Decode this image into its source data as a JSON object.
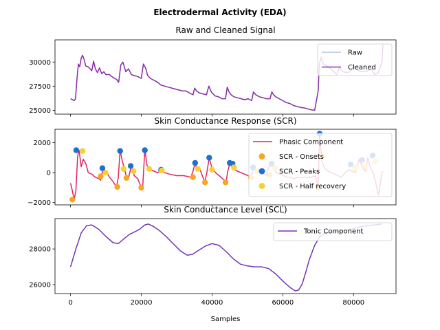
{
  "figure": {
    "suptitle": "Electrodermal Activity (EDA)",
    "xlabel": "Samples",
    "x_ticks": [
      0,
      20000,
      40000,
      60000,
      80000
    ],
    "x_tick_labels": [
      "0",
      "20000",
      "40000",
      "60000",
      "80000"
    ]
  },
  "chart_data": [
    {
      "type": "line",
      "title": "Raw and Cleaned Signal",
      "xlim": [
        -4400,
        92000
      ],
      "ylim": [
        24600,
        32300
      ],
      "y_ticks": [
        25000,
        27500,
        30000
      ],
      "y_tick_labels": [
        "25000",
        "27500",
        "30000"
      ],
      "legend": "top-right",
      "series": [
        {
          "name": "Raw",
          "color": "#b0c4de",
          "x": [
            0,
            600,
            1000,
            1400,
            1800,
            2200,
            2600,
            3000,
            3400,
            3800,
            4300,
            5000,
            6000,
            6500,
            7000,
            7600,
            8200,
            8800,
            9400,
            10000,
            11000,
            12000,
            13000,
            13600,
            14200,
            14800,
            15600,
            16400,
            17200,
            18000,
            19000,
            20000,
            20600,
            21200,
            21800,
            22600,
            23600,
            24600,
            25600,
            26600,
            27600,
            28600,
            29600,
            30600,
            31600,
            32600,
            33600,
            34600,
            35100,
            35600,
            36400,
            37400,
            38400,
            39100,
            39800,
            40800,
            41800,
            42800,
            43800,
            44300,
            44800,
            45400,
            46200,
            47200,
            48200,
            49200,
            50200,
            51200,
            51700,
            52400,
            53400,
            54400,
            55400,
            56400,
            56900,
            57400,
            58000,
            59000,
            60000,
            61000,
            62000,
            63000,
            64000,
            65000,
            66000,
            67000,
            68000,
            69000,
            70000,
            70300,
            70800,
            71500,
            72500,
            73500,
            74500,
            75200,
            76000,
            77000,
            78000,
            79000,
            80000,
            81000,
            82000,
            83000,
            84000,
            85000,
            86000,
            87000,
            88000,
            88300
          ],
          "y": [
            26200,
            26100,
            26000,
            26200,
            28200,
            29800,
            29500,
            30400,
            30700,
            30300,
            29600,
            29500,
            29100,
            30100,
            29300,
            28900,
            29400,
            28800,
            29000,
            28700,
            28700,
            28400,
            28200,
            27900,
            29700,
            30000,
            29000,
            29300,
            28700,
            28600,
            28500,
            28300,
            29800,
            29400,
            28600,
            28300,
            28100,
            27900,
            27600,
            27500,
            27400,
            27300,
            27200,
            27100,
            27000,
            27000,
            26800,
            26600,
            27300,
            27000,
            26800,
            26700,
            26600,
            27500,
            26900,
            26500,
            26400,
            26200,
            26200,
            27400,
            26900,
            26600,
            26400,
            26300,
            26200,
            26100,
            26200,
            26000,
            26900,
            26600,
            26400,
            26300,
            26200,
            26200,
            26900,
            26600,
            26400,
            26200,
            26000,
            25800,
            25700,
            25500,
            25400,
            25300,
            25250,
            25150,
            25050,
            25000,
            27000,
            29700,
            30500,
            29800,
            29600,
            29300,
            29000,
            28700,
            29400,
            29000,
            28900,
            29000,
            29600,
            29200,
            29000,
            29000,
            29100,
            29300,
            28700,
            28900,
            30000,
            31800
          ]
        },
        {
          "name": "Cleaned",
          "color": "#8b2fa8",
          "x": [
            0,
            600,
            1000,
            1400,
            1800,
            2200,
            2600,
            3000,
            3400,
            3800,
            4300,
            5000,
            6000,
            6500,
            7000,
            7600,
            8200,
            8800,
            9400,
            10000,
            11000,
            12000,
            13000,
            13600,
            14200,
            14800,
            15600,
            16400,
            17200,
            18000,
            19000,
            20000,
            20600,
            21200,
            21800,
            22600,
            23600,
            24600,
            25600,
            26600,
            27600,
            28600,
            29600,
            30600,
            31600,
            32600,
            33600,
            34600,
            35100,
            35600,
            36400,
            37400,
            38400,
            39100,
            39800,
            40800,
            41800,
            42800,
            43800,
            44300,
            44800,
            45400,
            46200,
            47200,
            48200,
            49200,
            50200,
            51200,
            51700,
            52400,
            53400,
            54400,
            55400,
            56400,
            56900,
            57400,
            58000,
            59000,
            60000,
            61000,
            62000,
            63000,
            64000,
            65000,
            66000,
            67000,
            68000,
            69000,
            70000,
            70300,
            70800,
            71500,
            72500,
            73500,
            74500,
            75200,
            76000,
            77000,
            78000,
            79000,
            80000,
            81000,
            82000,
            83000,
            84000,
            85000,
            86000,
            87000,
            88000,
            88300
          ],
          "y": [
            26200,
            26100,
            26000,
            26200,
            28200,
            29800,
            29500,
            30400,
            30700,
            30300,
            29600,
            29500,
            29100,
            30100,
            29300,
            28900,
            29400,
            28800,
            29000,
            28700,
            28700,
            28400,
            28200,
            27900,
            29700,
            30000,
            29000,
            29300,
            28700,
            28600,
            28500,
            28300,
            29800,
            29400,
            28600,
            28300,
            28100,
            27900,
            27600,
            27500,
            27400,
            27300,
            27200,
            27100,
            27000,
            27000,
            26800,
            26600,
            27300,
            27000,
            26800,
            26700,
            26600,
            27500,
            26900,
            26500,
            26400,
            26200,
            26200,
            27400,
            26900,
            26600,
            26400,
            26300,
            26200,
            26100,
            26200,
            26000,
            26900,
            26600,
            26400,
            26300,
            26200,
            26200,
            26900,
            26600,
            26400,
            26200,
            26000,
            25800,
            25700,
            25500,
            25400,
            25300,
            25250,
            25150,
            25050,
            25000,
            27000,
            29700,
            30500,
            29800,
            29600,
            29300,
            29000,
            28700,
            29400,
            29000,
            28900,
            29000,
            29600,
            29200,
            29000,
            29000,
            29100,
            29300,
            28700,
            28900,
            30000,
            31800
          ]
        }
      ]
    },
    {
      "type": "line",
      "title": "Skin Conductance Response (SCR)",
      "xlim": [
        -4400,
        92000
      ],
      "ylim": [
        -2150,
        2900
      ],
      "y_ticks": [
        -2000,
        0,
        2000
      ],
      "y_tick_labels": [
        "−2000",
        "0",
        "2000"
      ],
      "legend": "top-right",
      "series": [
        {
          "name": "Phasic Component",
          "color": "#e0245e",
          "x": [
            0,
            500,
            1000,
            1500,
            2000,
            2400,
            3000,
            3600,
            4300,
            5000,
            6000,
            7000,
            8000,
            8500,
            9200,
            10000,
            11000,
            12000,
            13000,
            13500,
            14000,
            14600,
            15200,
            15800,
            16400,
            17200,
            18000,
            19000,
            20000,
            20400,
            21000,
            21600,
            22600,
            23600,
            24600,
            25600,
            26600,
            28000,
            30000,
            32000,
            34000,
            34600,
            35200,
            35800,
            36600,
            37400,
            38000,
            38600,
            39200,
            40000,
            41000,
            42000,
            43000,
            44000,
            44400,
            45000,
            45600,
            46400,
            47200,
            48200,
            49200,
            50200,
            51000,
            51600,
            52400,
            53400,
            54400,
            55400,
            56200,
            56800,
            57400,
            58200,
            59200,
            60200,
            61200,
            62200,
            63200,
            64200,
            65200,
            66200,
            67200,
            68200,
            69200,
            70000,
            70400,
            71000,
            71800,
            72800,
            73800,
            74800,
            75600,
            76600,
            77600,
            78600,
            79600,
            80600,
            81600,
            82600,
            83400,
            84000,
            84800,
            85400,
            86200,
            87000,
            87600,
            88000,
            88300
          ],
          "y": [
            -700,
            -1200,
            -1800,
            -1200,
            1100,
            1500,
            400,
            900,
            600,
            0,
            -100,
            -300,
            -400,
            -500,
            300,
            100,
            -300,
            -600,
            -950,
            -300,
            1500,
            800,
            300,
            -300,
            -350,
            500,
            -200,
            -400,
            -1000,
            -900,
            1550,
            500,
            200,
            100,
            0,
            150,
            0,
            -100,
            -200,
            -200,
            -300,
            100,
            650,
            100,
            200,
            -300,
            -600,
            100,
            1000,
            300,
            0,
            -200,
            -400,
            -600,
            50,
            600,
            500,
            200,
            100,
            0,
            -100,
            -200,
            -300,
            350,
            100,
            0,
            -100,
            -150,
            500,
            600,
            200,
            0,
            -100,
            -200,
            -300,
            -300,
            -400,
            -300,
            -300,
            -300,
            -300,
            -300,
            -200,
            -1000,
            2600,
            800,
            300,
            100,
            0,
            -100,
            -200,
            -300,
            0,
            200,
            100,
            0,
            900,
            300,
            100,
            1000,
            300,
            100,
            -600,
            -1500,
            -700,
            0,
            100
          ]
        },
        {
          "name": "SCR - Onsets",
          "color": "#f5a623",
          "kind": "scatter",
          "x": [
            500,
            8500,
            13200,
            15800,
            20000,
            34600,
            38000,
            43800,
            51000,
            56200,
            70000
          ],
          "y": [
            -1800,
            -250,
            -950,
            -350,
            -1000,
            -300,
            -650,
            -650,
            -300,
            -150,
            -1000
          ]
        },
        {
          "name": "SCR - Peaks",
          "color": "#1f6fd1",
          "kind": "scatter",
          "x": [
            1600,
            9000,
            14000,
            17000,
            21000,
            25600,
            35200,
            39200,
            45000,
            45800,
            51600,
            56800,
            70400,
            79200,
            82400,
            85400
          ],
          "y": [
            1500,
            300,
            1450,
            450,
            1500,
            200,
            650,
            1000,
            650,
            600,
            350,
            600,
            2600,
            550,
            850,
            1150
          ]
        },
        {
          "name": "SCR - Half recovery",
          "color": "#f7d133",
          "kind": "scatter",
          "x": [
            3400,
            9900,
            15000,
            17800,
            22200,
            25800,
            36000,
            40000,
            46200,
            53000,
            57800,
            71200,
            80400,
            83200,
            86200
          ],
          "y": [
            1450,
            0,
            250,
            100,
            250,
            150,
            250,
            200,
            350,
            100,
            300,
            1100,
            300,
            450,
            750
          ]
        }
      ]
    },
    {
      "type": "line",
      "title": "Skin Conductance Level (SCL)",
      "xlim": [
        -4400,
        92000
      ],
      "ylim": [
        25500,
        29700
      ],
      "y_ticks": [
        26000,
        28000
      ],
      "y_tick_labels": [
        "26000",
        "28000"
      ],
      "legend": "top-right",
      "series": [
        {
          "name": "Tonic Component",
          "color": "#6f35b5",
          "x": [
            0,
            1500,
            3000,
            4500,
            6000,
            8000,
            10000,
            12000,
            13500,
            15000,
            16500,
            18000,
            19500,
            21000,
            22000,
            23500,
            25000,
            27000,
            29000,
            31000,
            33000,
            34500,
            36000,
            38000,
            40000,
            42000,
            44000,
            46000,
            48000,
            50000,
            52000,
            54000,
            56000,
            58000,
            60000,
            62000,
            63500,
            64500,
            65500,
            66500,
            67500,
            69000,
            70500,
            72000,
            74000,
            76000,
            78000,
            80000,
            82000,
            84000,
            86000,
            88000
          ],
          "y": [
            27000,
            28000,
            28900,
            29300,
            29350,
            29100,
            28700,
            28350,
            28300,
            28550,
            28800,
            28950,
            29100,
            29350,
            29400,
            29250,
            29050,
            28700,
            28300,
            27900,
            27650,
            27700,
            27900,
            28150,
            28300,
            28200,
            27850,
            27450,
            27150,
            27050,
            27000,
            27000,
            26900,
            26600,
            26200,
            25850,
            25650,
            25700,
            26050,
            26700,
            27400,
            28200,
            28700,
            28900,
            28950,
            29000,
            29050,
            29150,
            29250,
            29300,
            29350,
            29400
          ]
        }
      ]
    }
  ]
}
